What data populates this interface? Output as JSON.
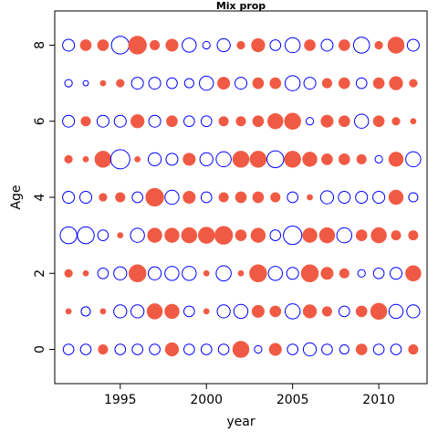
{
  "chart_data": {
    "type": "scatter",
    "subtype": "bubble",
    "title": "Mix prop",
    "xlabel": "year",
    "ylabel": "Age",
    "xlim": [
      1991.2,
      2012.8
    ],
    "ylim": [
      -0.9,
      8.9
    ],
    "x_ticks": [
      1995,
      2000,
      2005,
      2010
    ],
    "y_ticks": [
      0,
      2,
      4,
      6,
      8
    ],
    "colors": {
      "positive": "#f05a44",
      "negative": "#0000ff"
    },
    "legend": "none",
    "grid": false,
    "years": [
      1992,
      1993,
      1994,
      1995,
      1996,
      1997,
      1998,
      1999,
      2000,
      2001,
      2002,
      2003,
      2004,
      2005,
      2006,
      2007,
      2008,
      2009,
      2010,
      2011,
      2012
    ],
    "ages": [
      0,
      1,
      2,
      3,
      4,
      5,
      6,
      7,
      8
    ],
    "note_values": "residual value per cell; sign shown by color (positive = filled red, negative = open blue), magnitude by circle size",
    "values": [
      [
        -0.2,
        -0.2,
        0.15,
        -0.2,
        -0.2,
        -0.2,
        0.3,
        -0.2,
        -0.2,
        -0.2,
        0.45,
        -0.1,
        0.25,
        -0.2,
        -0.3,
        -0.2,
        -0.15,
        0.2,
        -0.2,
        -0.2,
        0.15
      ],
      [
        0.05,
        -0.15,
        0.05,
        -0.3,
        -0.3,
        0.4,
        0.35,
        -0.2,
        0.05,
        -0.3,
        -0.35,
        0.25,
        0.2,
        -0.4,
        0.3,
        0.15,
        -0.2,
        0.2,
        0.45,
        -0.35,
        -0.3
      ],
      [
        0.1,
        0.05,
        -0.2,
        -0.3,
        0.5,
        -0.3,
        -0.35,
        -0.35,
        0.05,
        -0.4,
        0.05,
        0.5,
        -0.35,
        -0.25,
        0.5,
        0.25,
        0.15,
        -0.1,
        -0.2,
        -0.25,
        0.4
      ],
      [
        -0.5,
        -0.5,
        -0.2,
        0.05,
        -0.35,
        0.35,
        0.35,
        0.4,
        0.45,
        0.55,
        0.2,
        0.35,
        -0.2,
        -0.6,
        0.35,
        0.4,
        -0.4,
        0.2,
        0.4,
        0.15,
        0.15
      ],
      [
        -0.25,
        -0.25,
        0.1,
        0.15,
        -0.2,
        0.55,
        -0.35,
        0.25,
        -0.2,
        0.15,
        0.2,
        0.2,
        0.15,
        -0.2,
        0.05,
        -0.3,
        -0.25,
        -0.25,
        -0.25,
        0.35,
        -0.15
      ],
      [
        0.1,
        0.05,
        0.45,
        -0.65,
        0.05,
        -0.3,
        -0.25,
        0.25,
        -0.3,
        -0.4,
        0.45,
        0.45,
        -0.5,
        0.45,
        0.35,
        0.2,
        0.2,
        0.15,
        -0.1,
        0.35,
        -0.4
      ],
      [
        -0.25,
        0.15,
        -0.25,
        -0.25,
        0.3,
        -0.25,
        0.2,
        -0.2,
        -0.2,
        0.15,
        0.15,
        0.2,
        0.4,
        0.45,
        -0.1,
        0.25,
        0.2,
        -0.35,
        0.2,
        0.1,
        0.05
      ],
      [
        -0.1,
        -0.05,
        0.05,
        0.1,
        -0.25,
        -0.25,
        -0.2,
        -0.15,
        -0.35,
        0.25,
        -0.25,
        0.2,
        0.2,
        -0.4,
        -0.25,
        0.15,
        0.2,
        -0.2,
        0.2,
        0.3,
        0.1
      ],
      [
        -0.25,
        0.2,
        0.2,
        -0.55,
        0.55,
        0.15,
        0.25,
        -0.35,
        -0.1,
        -0.3,
        0.1,
        0.3,
        -0.2,
        -0.4,
        0.2,
        -0.25,
        0.2,
        -0.45,
        0.1,
        0.45,
        -0.25
      ]
    ]
  }
}
